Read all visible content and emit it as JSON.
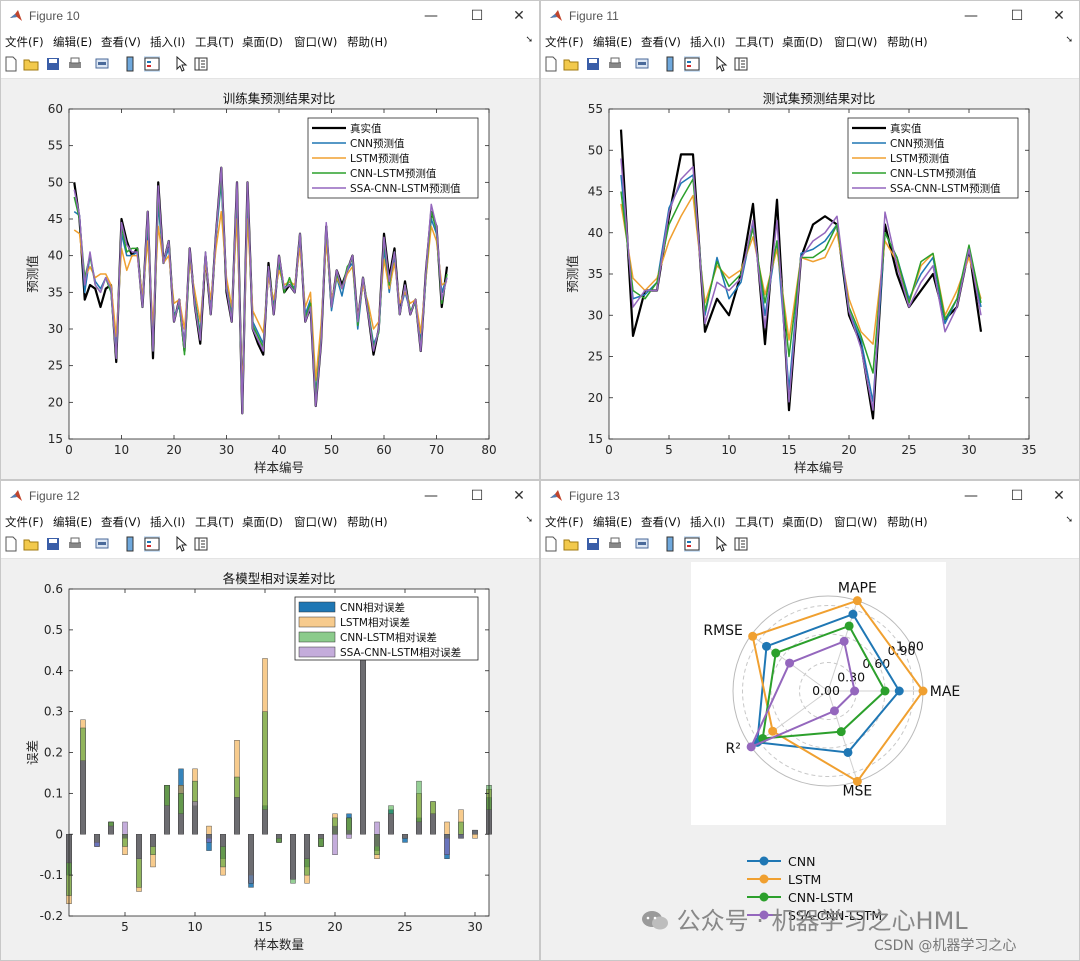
{
  "windows": {
    "w10": {
      "title": "Figure 10"
    },
    "w11": {
      "title": "Figure 11"
    },
    "w12": {
      "title": "Figure 12"
    },
    "w13": {
      "title": "Figure 13"
    }
  },
  "menu": [
    "文件(F)",
    "编辑(E)",
    "查看(V)",
    "插入(I)",
    "工具(T)",
    "桌面(D)",
    "窗口(W)",
    "帮助(H)"
  ],
  "icons": [
    "new-file-icon",
    "open-folder-icon",
    "save-icon",
    "print-icon",
    "link-icon",
    "colorbar-icon",
    "legend-icon",
    "pointer-icon",
    "property-inspector-icon"
  ],
  "colors": {
    "true": "#000000",
    "cnn": "#1f77b4",
    "lstm": "#f0a030",
    "cnnlstm": "#2ca02c",
    "ssa": "#9467bd",
    "axes_bg": "#ffffff",
    "figure_bg": "#f0f0f0"
  },
  "labels": {
    "f10": {
      "title": "训练集预测结果对比",
      "xlabel": "样本编号",
      "ylabel": "预测值"
    },
    "f11": {
      "title": "测试集预测结果对比",
      "xlabel": "样本编号",
      "ylabel": "预测值"
    },
    "f12": {
      "title": "各模型相对误差对比",
      "xlabel": "样本数量",
      "ylabel": "误差"
    },
    "f13": {
      "title": ""
    }
  },
  "legend_line": [
    "真实值",
    "CNN预测值",
    "LSTM预测值",
    "CNN-LSTM预测值",
    "SSA-CNN-LSTM预测值"
  ],
  "legend_bar": [
    "CNN相对误差",
    "LSTM相对误差",
    "CNN-LSTM相对误差",
    "SSA-CNN-LSTM相对误差"
  ],
  "legend_radar": [
    "CNN",
    "LSTM",
    "CNN-LSTM",
    "SSA-CNN-LSTM"
  ],
  "watermark": {
    "main": "公众号 · 机器学习之心HML",
    "sub": "CSDN @机器学习之心"
  },
  "chart_data": [
    {
      "id": "f10",
      "type": "line",
      "title": "训练集预测结果对比",
      "xlabel": "样本编号",
      "ylabel": "预测值",
      "xlim": [
        0,
        80
      ],
      "ylim": [
        15,
        60
      ],
      "xticks": [
        0,
        10,
        20,
        30,
        40,
        50,
        60,
        70,
        80
      ],
      "yticks": [
        15,
        20,
        25,
        30,
        35,
        40,
        45,
        50,
        55,
        60
      ],
      "legend_position": "top-right",
      "x": [
        1,
        2,
        3,
        4,
        5,
        6,
        7,
        8,
        9,
        10,
        11,
        12,
        13,
        14,
        15,
        16,
        17,
        18,
        19,
        20,
        21,
        22,
        23,
        24,
        25,
        26,
        27,
        28,
        29,
        30,
        31,
        32,
        33,
        34,
        35,
        36,
        37,
        38,
        39,
        40,
        41,
        42,
        43,
        44,
        45,
        46,
        47,
        48,
        49,
        50,
        51,
        52,
        53,
        54,
        55,
        56,
        57,
        58,
        59,
        60,
        61,
        62,
        63,
        64,
        65,
        66,
        67,
        68,
        69,
        70,
        71,
        72
      ],
      "series": [
        {
          "name": "真实值",
          "values": [
            50,
            45,
            34,
            36,
            35.5,
            33,
            35.5,
            36,
            25.5,
            45,
            42,
            40,
            41,
            33,
            46,
            26,
            50,
            39,
            42,
            31,
            34,
            27,
            41,
            33,
            28,
            40,
            32,
            43,
            52,
            35,
            31,
            50,
            18.5,
            50,
            30,
            28,
            26.5,
            39,
            32,
            40,
            35,
            36,
            35,
            43,
            31,
            33,
            19.5,
            28,
            44,
            33,
            38,
            36,
            38,
            40,
            31,
            37,
            32,
            26.5,
            30,
            43,
            37,
            41,
            32,
            36.5,
            32,
            34,
            27,
            38,
            46,
            44,
            33,
            38.5
          ]
        },
        {
          "name": "CNN预测值",
          "values": [
            46,
            45.5,
            35,
            40,
            36.5,
            35.5,
            37,
            35,
            27,
            43,
            40,
            40,
            40.5,
            33.5,
            44.5,
            28,
            47,
            39,
            41,
            32,
            33,
            28,
            40,
            34,
            29.5,
            40,
            32.5,
            42.5,
            50,
            36,
            32,
            48,
            19.5,
            48,
            31,
            29.5,
            28,
            37.5,
            33,
            38.5,
            35.5,
            36.5,
            35.5,
            42,
            32,
            34,
            21,
            29,
            43.5,
            32.5,
            37,
            34.5,
            38,
            39,
            30,
            36.5,
            32.5,
            28,
            29.5,
            41,
            35,
            40,
            32.5,
            35,
            32.5,
            33.5,
            28,
            37,
            45,
            43,
            35,
            37
          ]
        },
        {
          "name": "LSTM预测值",
          "values": [
            43.5,
            43,
            37,
            38.5,
            37,
            37.5,
            37.5,
            36,
            29,
            41,
            38,
            40,
            40,
            34.5,
            42,
            30.5,
            44,
            39,
            40,
            33.5,
            34,
            30,
            39,
            35,
            31,
            39,
            34,
            41,
            46,
            37,
            33,
            45,
            21.5,
            45,
            32.5,
            31,
            29.5,
            37,
            34,
            38,
            36,
            36.5,
            36,
            41,
            33,
            35,
            23,
            30.5,
            42,
            34,
            37,
            35.5,
            37.5,
            38.5,
            31.5,
            36,
            33.5,
            30,
            31,
            39.5,
            35.5,
            39,
            33.5,
            35,
            33.5,
            34,
            29.5,
            37,
            44,
            42,
            36,
            36.5
          ]
        },
        {
          "name": "CNN-LSTM预测值",
          "values": [
            48,
            45,
            37,
            40,
            36,
            35,
            37,
            35,
            26,
            44,
            40.5,
            41,
            41,
            33,
            45.5,
            27,
            48.5,
            39,
            42,
            31.5,
            33.5,
            26.5,
            40.5,
            33.5,
            29,
            40.5,
            32,
            43,
            51,
            35.5,
            31.5,
            49,
            19,
            49,
            30.5,
            29,
            27.5,
            38.5,
            32.5,
            39.5,
            35,
            37,
            35,
            43,
            31.5,
            33.5,
            20.5,
            28.5,
            44,
            33,
            37.5,
            35.5,
            38.5,
            39.5,
            30.5,
            37,
            32.5,
            27.5,
            29.5,
            42,
            36,
            40.5,
            32,
            36,
            32.5,
            33.5,
            27.5,
            37.5,
            46,
            43.5,
            33.5,
            37.5
          ]
        },
        {
          "name": "SSA-CNN-LSTM预测值",
          "values": [
            49,
            45.5,
            36,
            40.5,
            36,
            35,
            37,
            35.5,
            26,
            44.5,
            41.5,
            40.5,
            40.5,
            33,
            46,
            27,
            49.5,
            39,
            42,
            31,
            34,
            27.5,
            41,
            33,
            28.5,
            40.5,
            32,
            43,
            52,
            35.5,
            31,
            50,
            18.5,
            50,
            30,
            28.5,
            27,
            38.5,
            32,
            40,
            35.5,
            36,
            35,
            43,
            31,
            33,
            19.5,
            28,
            44.5,
            33,
            38,
            35.5,
            38,
            40,
            31,
            37,
            32,
            27,
            30,
            42.5,
            36.5,
            40.5,
            32,
            36,
            32,
            34,
            27,
            38,
            47,
            44,
            34,
            37
          ]
        }
      ]
    },
    {
      "id": "f11",
      "type": "line",
      "title": "测试集预测结果对比",
      "xlabel": "样本编号",
      "ylabel": "预测值",
      "xlim": [
        0,
        35
      ],
      "ylim": [
        15,
        55
      ],
      "xticks": [
        0,
        5,
        10,
        15,
        20,
        25,
        30,
        35
      ],
      "yticks": [
        15,
        20,
        25,
        30,
        35,
        40,
        45,
        50,
        55
      ],
      "legend_position": "top-right",
      "x": [
        1,
        2,
        3,
        4,
        5,
        6,
        7,
        8,
        9,
        10,
        11,
        12,
        13,
        14,
        15,
        16,
        17,
        18,
        19,
        20,
        21,
        22,
        23,
        24,
        25,
        26,
        27,
        28,
        29,
        30,
        31
      ],
      "series": [
        {
          "name": "真实值",
          "values": [
            52.5,
            27.5,
            33,
            33,
            42,
            49.5,
            49.5,
            28,
            32,
            30,
            35,
            43.5,
            26.5,
            44,
            18.5,
            37,
            41,
            42,
            41,
            30,
            26.5,
            17.5,
            41,
            35,
            31,
            33,
            35,
            29.5,
            31,
            38,
            28
          ]
        },
        {
          "name": "CNN预测值",
          "values": [
            47,
            32,
            32.5,
            34,
            43,
            46,
            47,
            30,
            37,
            32,
            34,
            41,
            30,
            39,
            21,
            37.5,
            38,
            39,
            41,
            30.5,
            27,
            19.5,
            40,
            37,
            32,
            35,
            37,
            29,
            32,
            38,
            31
          ]
        },
        {
          "name": "LSTM预测值",
          "values": [
            43.5,
            34.5,
            33,
            34.5,
            39,
            42,
            44.5,
            31.5,
            36,
            34.5,
            35.5,
            39.5,
            32.5,
            38,
            27,
            37,
            36.5,
            37,
            40,
            32,
            28,
            26.5,
            39,
            36.5,
            31.5,
            36,
            37.5,
            30,
            33,
            37,
            32
          ]
        },
        {
          "name": "CNN-LSTM预测值",
          "values": [
            45,
            33,
            32,
            34,
            41,
            44,
            46.5,
            30.5,
            36.5,
            33.5,
            35,
            40.5,
            31.5,
            39,
            25,
            37,
            37,
            38,
            41,
            31,
            27.5,
            23,
            40,
            37,
            31.5,
            36.5,
            37.5,
            29.5,
            32,
            38.5,
            31.5
          ]
        },
        {
          "name": "SSA-CNN-LSTM预测值",
          "values": [
            49,
            31,
            33,
            33,
            42.5,
            46.5,
            48,
            29,
            34,
            33,
            34.5,
            41.5,
            28.5,
            41.5,
            19.5,
            37,
            39,
            40,
            42,
            30.5,
            26,
            18.5,
            42.5,
            36,
            31,
            34,
            36,
            28,
            31,
            38,
            30
          ]
        }
      ]
    },
    {
      "id": "f12",
      "type": "bar",
      "title": "各模型相对误差对比",
      "xlabel": "样本数量",
      "ylabel": "误差",
      "xlim": [
        1,
        31
      ],
      "ylim": [
        -0.2,
        0.6
      ],
      "xticks": [
        5,
        10,
        15,
        20,
        25,
        30
      ],
      "yticks": [
        -0.2,
        -0.1,
        0,
        0.1,
        0.2,
        0.3,
        0.4,
        0.5,
        0.6
      ],
      "legend_position": "top-right",
      "x": [
        1,
        2,
        3,
        4,
        5,
        6,
        7,
        8,
        9,
        10,
        11,
        12,
        13,
        14,
        15,
        16,
        17,
        18,
        19,
        20,
        21,
        22,
        23,
        24,
        25,
        26,
        27,
        28,
        29,
        30,
        31
      ],
      "series": [
        {
          "name": "CNN相对误差",
          "values": [
            -0.1,
            0.18,
            -0.03,
            0.03,
            -0.01,
            -0.06,
            -0.03,
            0.12,
            0.16,
            0.07,
            -0.04,
            -0.06,
            0.09,
            -0.13,
            0.07,
            -0.02,
            -0.11,
            -0.08,
            -0.03,
            0.02,
            0.05,
            0.43,
            -0.04,
            0.06,
            -0.02,
            0.04,
            0.05,
            -0.06,
            -0.01,
            0.01,
            0.09
          ]
        },
        {
          "name": "LSTM相对误差",
          "values": [
            -0.17,
            0.28,
            -0.02,
            0.03,
            -0.05,
            -0.14,
            -0.08,
            0.12,
            0.12,
            0.16,
            0.02,
            -0.1,
            0.23,
            -0.1,
            0.43,
            -0.02,
            -0.11,
            -0.12,
            -0.03,
            0.05,
            0.04,
            0.5,
            -0.06,
            0.05,
            -0.01,
            0.1,
            0.08,
            0.03,
            0.06,
            -0.01,
            0.11
          ]
        },
        {
          "name": "CNN-LSTM相对误差",
          "values": [
            -0.15,
            0.26,
            -0.02,
            0.03,
            -0.03,
            -0.13,
            -0.05,
            0.12,
            0.1,
            0.13,
            -0.01,
            -0.08,
            0.14,
            -0.12,
            0.3,
            -0.02,
            -0.12,
            -0.1,
            -0.03,
            0.04,
            0.04,
            0.47,
            -0.05,
            0.07,
            -0.01,
            0.13,
            0.08,
            -0.01,
            0.03,
            0.01,
            0.12
          ]
        },
        {
          "name": "SSA-CNN-LSTM相对误差",
          "values": [
            -0.07,
            0.18,
            -0.03,
            0.02,
            0.03,
            -0.06,
            -0.03,
            0.07,
            0.05,
            0.08,
            -0.02,
            -0.03,
            0.09,
            -0.12,
            0.06,
            -0.01,
            -0.11,
            -0.06,
            -0.01,
            -0.05,
            -0.01,
            0.46,
            0.03,
            0.05,
            -0.01,
            0.03,
            0.05,
            -0.05,
            -0.01,
            0.01,
            0.06
          ]
        }
      ]
    },
    {
      "id": "f13",
      "type": "radar",
      "title": "",
      "axes": [
        "MAE",
        "MAPE",
        "RMSE",
        "R²",
        "MSE"
      ],
      "radial_ticks": [
        0.0,
        0.3,
        0.6,
        0.9,
        1.0
      ],
      "radial_tick_labels": [
        "0.00",
        "0.30",
        "0.60",
        "0.90",
        "1.00"
      ],
      "legend_position": "bottom",
      "series": [
        {
          "name": "CNN",
          "values": [
            0.75,
            0.85,
            0.8,
            0.92,
            0.68
          ]
        },
        {
          "name": "LSTM",
          "values": [
            1.0,
            1.0,
            0.98,
            0.72,
            1.0
          ]
        },
        {
          "name": "CNN-LSTM",
          "values": [
            0.6,
            0.72,
            0.68,
            0.85,
            0.45
          ]
        },
        {
          "name": "SSA-CNN-LSTM",
          "values": [
            0.28,
            0.55,
            0.5,
            1.0,
            0.22
          ]
        }
      ]
    }
  ]
}
